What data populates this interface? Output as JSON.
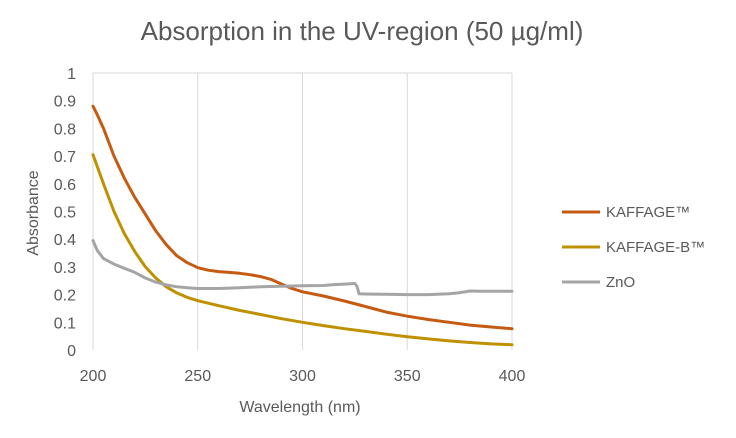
{
  "chart_data": {
    "type": "line",
    "title": "Absorption in the UV-region (50 µg/ml)",
    "xlabel": "Wavelength (nm)",
    "ylabel": "Absorbance",
    "xlim": [
      200,
      400
    ],
    "ylim": [
      0,
      1
    ],
    "x_ticks": [
      "200",
      "250",
      "300",
      "350",
      "400"
    ],
    "y_ticks": [
      "0",
      "0.1",
      "0.2",
      "0.3",
      "0.4",
      "0.5",
      "0.6",
      "0.7",
      "0.8",
      "0.9",
      "1"
    ],
    "grid": "vertical",
    "legend_position": "right",
    "series": [
      {
        "name": "KAFFAGE™",
        "color": "#C55A11",
        "x": [
          200,
          202,
          205,
          210,
          215,
          220,
          225,
          230,
          235,
          240,
          245,
          250,
          255,
          260,
          265,
          270,
          275,
          280,
          285,
          290,
          295,
          300,
          310,
          320,
          330,
          340,
          350,
          360,
          370,
          380,
          390,
          400
        ],
        "y": [
          0.88,
          0.85,
          0.8,
          0.7,
          0.62,
          0.55,
          0.49,
          0.43,
          0.38,
          0.34,
          0.315,
          0.297,
          0.288,
          0.283,
          0.28,
          0.277,
          0.272,
          0.265,
          0.255,
          0.238,
          0.222,
          0.21,
          0.195,
          0.177,
          0.157,
          0.137,
          0.122,
          0.11,
          0.1,
          0.09,
          0.083,
          0.077
        ]
      },
      {
        "name": "KAFFAGE-B™",
        "color": "#BF9000",
        "x": [
          200,
          205,
          210,
          215,
          220,
          225,
          230,
          235,
          240,
          245,
          250,
          260,
          270,
          280,
          290,
          300,
          310,
          320,
          330,
          340,
          350,
          360,
          370,
          380,
          390,
          400
        ],
        "y": [
          0.705,
          0.6,
          0.5,
          0.42,
          0.355,
          0.3,
          0.26,
          0.228,
          0.206,
          0.19,
          0.178,
          0.16,
          0.143,
          0.128,
          0.113,
          0.1,
          0.088,
          0.077,
          0.067,
          0.057,
          0.048,
          0.04,
          0.033,
          0.027,
          0.022,
          0.019
        ]
      },
      {
        "name": "ZnO",
        "color": "#A5A5A5",
        "x": [
          200,
          202,
          205,
          210,
          215,
          220,
          225,
          230,
          235,
          240,
          245,
          250,
          260,
          270,
          280,
          290,
          300,
          310,
          315,
          320,
          325,
          326,
          327,
          330,
          340,
          350,
          360,
          370,
          375,
          380,
          385,
          390,
          400
        ],
        "y": [
          0.395,
          0.36,
          0.33,
          0.31,
          0.295,
          0.28,
          0.26,
          0.245,
          0.235,
          0.228,
          0.225,
          0.222,
          0.222,
          0.225,
          0.228,
          0.23,
          0.232,
          0.233,
          0.236,
          0.238,
          0.24,
          0.23,
          0.203,
          0.202,
          0.201,
          0.2,
          0.2,
          0.203,
          0.207,
          0.213,
          0.212,
          0.212,
          0.212
        ]
      }
    ]
  }
}
